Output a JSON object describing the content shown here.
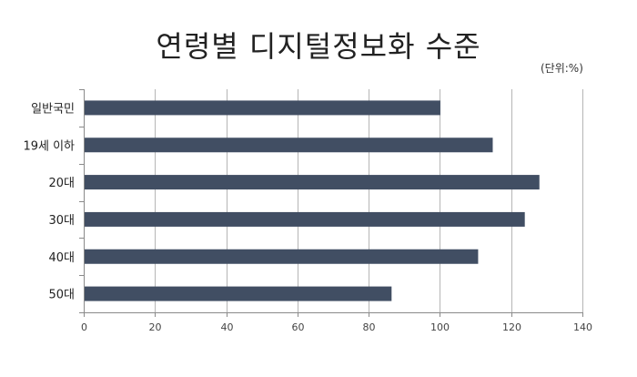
{
  "chart_data": {
    "type": "bar",
    "orientation": "horizontal",
    "title": "연령별 디지털정보화 수준",
    "unit_note": "(단위:%)",
    "categories": [
      "일반국민",
      "19세 이하",
      "20대",
      "30대",
      "40대",
      "50대"
    ],
    "values": [
      100,
      114.7,
      127.8,
      123.7,
      110.6,
      86.3
    ],
    "xlim": [
      0,
      140
    ],
    "xticks": [
      "0",
      "20",
      "40",
      "60",
      "80",
      "100",
      "120",
      "140"
    ],
    "grid": "vertical",
    "bar_color": "#414e63",
    "legend": "none"
  }
}
